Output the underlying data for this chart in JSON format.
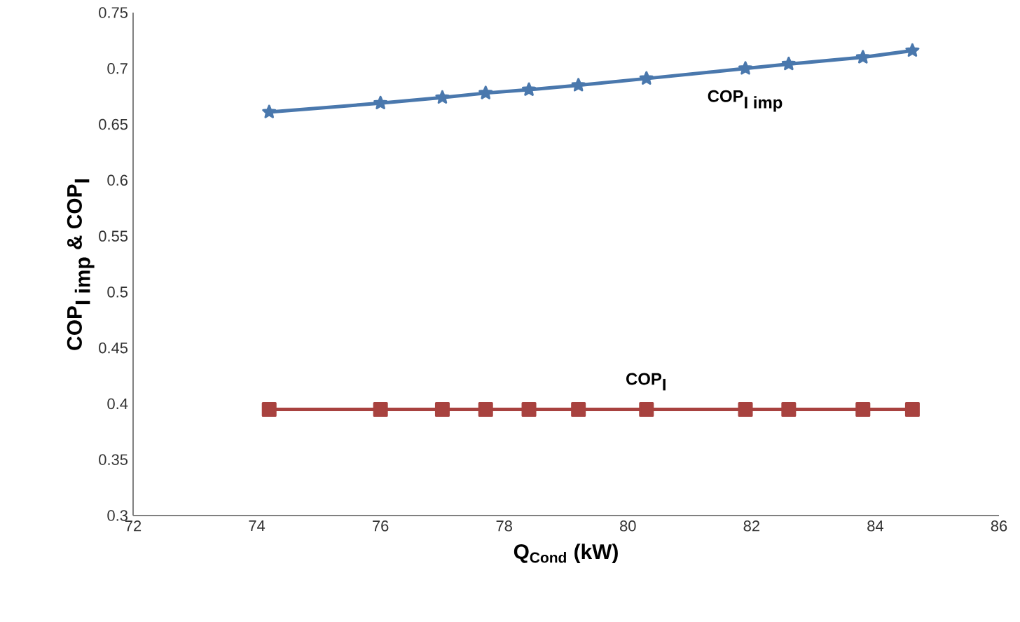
{
  "chart_data": {
    "type": "line",
    "xlabel": "Q$_{Cond}$ (kW)",
    "ylabel": "\\textbf{COP}_{\\textbf{I imp}}\\ \\textbf{\\&}\\ \\textbf{COP}_{\\textbf{I}}",
    "x": [
      74.2,
      76.0,
      77.0,
      77.7,
      78.4,
      79.2,
      80.3,
      81.9,
      82.6,
      83.8,
      84.6
    ],
    "series": [
      {
        "name": "\\textbf{COP}_{\\textbf{I imp}}",
        "color": "#4a78ad",
        "marker": "star",
        "values": [
          0.661,
          0.669,
          0.674,
          0.678,
          0.681,
          0.685,
          0.691,
          0.7,
          0.704,
          0.71,
          0.716
        ]
      },
      {
        "name": "\\textbf{COP}_{\\textbf{I}}",
        "color": "#a8423f",
        "marker": "square",
        "values": [
          0.395,
          0.395,
          0.395,
          0.395,
          0.395,
          0.395,
          0.395,
          0.395,
          0.395,
          0.395,
          0.395
        ]
      }
    ],
    "xlim": [
      72,
      86
    ],
    "xticks": [
      72,
      74,
      76,
      78,
      80,
      82,
      84,
      86
    ],
    "ylim": [
      0.3,
      0.75
    ],
    "yticks": [
      0.3,
      0.35,
      0.4,
      0.45,
      0.5,
      0.55,
      0.6,
      0.65,
      0.7,
      0.75
    ],
    "grid": false,
    "legend": false
  }
}
